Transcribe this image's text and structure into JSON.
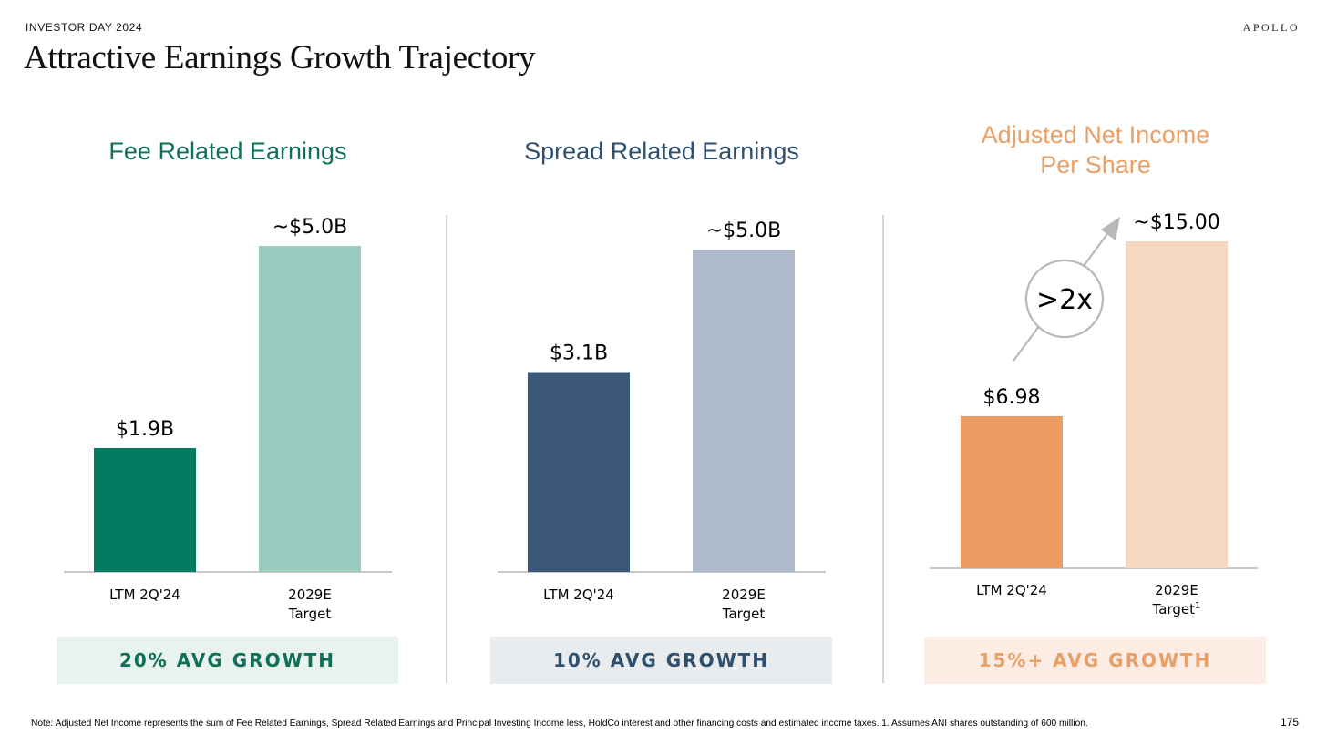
{
  "header": {
    "eyebrow": "INVESTOR DAY 2024",
    "brand": "APOLLO",
    "title": "Attractive Earnings Growth Trajectory"
  },
  "colors": {
    "fre_dark": "#047a60",
    "fre_light": "#9ccbbf",
    "fre_title": "#0f7059",
    "fre_box_bg": "#e8f3ef",
    "sre_dark": "#3b5878",
    "sre_light": "#aebaca",
    "sre_title": "#2e4f6e",
    "sre_box_bg": "#e8ecef",
    "ani_dark": "#ed9d62",
    "ani_light": "#f6d7c0",
    "ani_title": "#e8a066",
    "ani_box_bg": "#fcece3",
    "axis": "#c8c8c8",
    "arrow": "#b9b9b9"
  },
  "chart_data": [
    {
      "type": "bar",
      "title": "Fee Related Earnings",
      "categories": [
        "LTM 2Q'24",
        "2029E\nTarget"
      ],
      "values": [
        1.9,
        5.0
      ],
      "data_labels": [
        "$1.9B",
        "~$5.0B"
      ],
      "unit": "$B",
      "footer": "20% AVG GROWTH"
    },
    {
      "type": "bar",
      "title": "Spread Related Earnings",
      "categories": [
        "LTM 2Q'24",
        "2029E\nTarget"
      ],
      "values": [
        3.1,
        5.0
      ],
      "data_labels": [
        "$3.1B",
        "~$5.0B"
      ],
      "unit": "$B",
      "footer": "10% AVG GROWTH"
    },
    {
      "type": "bar",
      "title": "Adjusted Net Income\nPer Share",
      "categories": [
        "LTM 2Q'24",
        "2029E\nTarget"
      ],
      "category_superscripts": [
        "",
        "1"
      ],
      "values": [
        6.98,
        15.0
      ],
      "data_labels": [
        "$6.98",
        "~$15.00"
      ],
      "unit": "$",
      "annotation": ">2x",
      "footer": "15%+ AVG GROWTH"
    }
  ],
  "note": "Note: Adjusted Net Income represents the sum of Fee Related Earnings, Spread Related Earnings and Principal Investing Income less, HoldCo interest and other financing costs and estimated income taxes. 1. Assumes ANI shares outstanding of 600 million.",
  "page_number": "175"
}
